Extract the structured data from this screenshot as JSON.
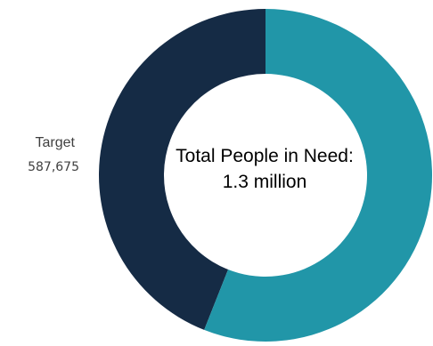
{
  "chart_data": {
    "type": "pie",
    "variant": "donut",
    "center_text": "Total People in Need: 1.3 million",
    "slices": [
      {
        "label": "Target",
        "value_text": "587,675",
        "share": 0.44,
        "color": "#152b45"
      },
      {
        "label": "",
        "value_text": "",
        "share": 0.56,
        "color": "#2196a8"
      }
    ],
    "start": "top",
    "direction": "clockwise"
  }
}
